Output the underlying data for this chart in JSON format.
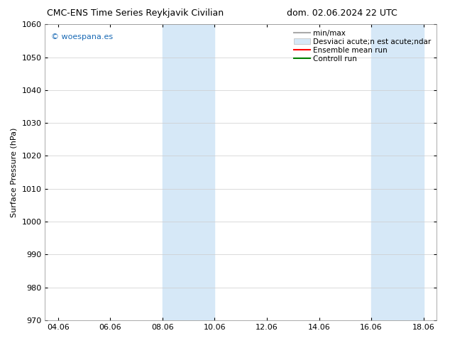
{
  "title_left": "CMC-ENS Time Series Reykjavik Civilian",
  "title_right": "dom. 02.06.2024 22 UTC",
  "ylabel": "Surface Pressure (hPa)",
  "ylim": [
    970,
    1060
  ],
  "yticks": [
    970,
    980,
    990,
    1000,
    1010,
    1020,
    1030,
    1040,
    1050,
    1060
  ],
  "xtick_labels": [
    "04.06",
    "06.06",
    "08.06",
    "10.06",
    "12.06",
    "14.06",
    "16.06",
    "18.06"
  ],
  "xtick_positions": [
    0,
    2,
    4,
    6,
    8,
    10,
    12,
    14
  ],
  "xlim": [
    -0.5,
    14.5
  ],
  "shaded_bands": [
    {
      "x_start": 4,
      "x_end": 6,
      "color": "#d6e8f7"
    },
    {
      "x_start": 12,
      "x_end": 14,
      "color": "#d6e8f7"
    }
  ],
  "watermark_text": "© woespana.es",
  "watermark_color": "#1a6ab5",
  "legend_entries": [
    {
      "label": "min/max",
      "color": "#aaaaaa",
      "lw": 1.5,
      "ls": "-",
      "type": "line"
    },
    {
      "label": "Desviaci acute;n est acute;ndar",
      "color": "#d6e8f7",
      "lw": 6,
      "ls": "-",
      "type": "patch"
    },
    {
      "label": "Ensemble mean run",
      "color": "red",
      "lw": 1.5,
      "ls": "-",
      "type": "line"
    },
    {
      "label": "Controll run",
      "color": "green",
      "lw": 1.5,
      "ls": "-",
      "type": "line"
    }
  ],
  "bg_color": "#ffffff",
  "grid_color": "#cccccc",
  "title_fontsize": 9,
  "axis_fontsize": 8,
  "tick_fontsize": 8,
  "legend_fontsize": 7.5
}
